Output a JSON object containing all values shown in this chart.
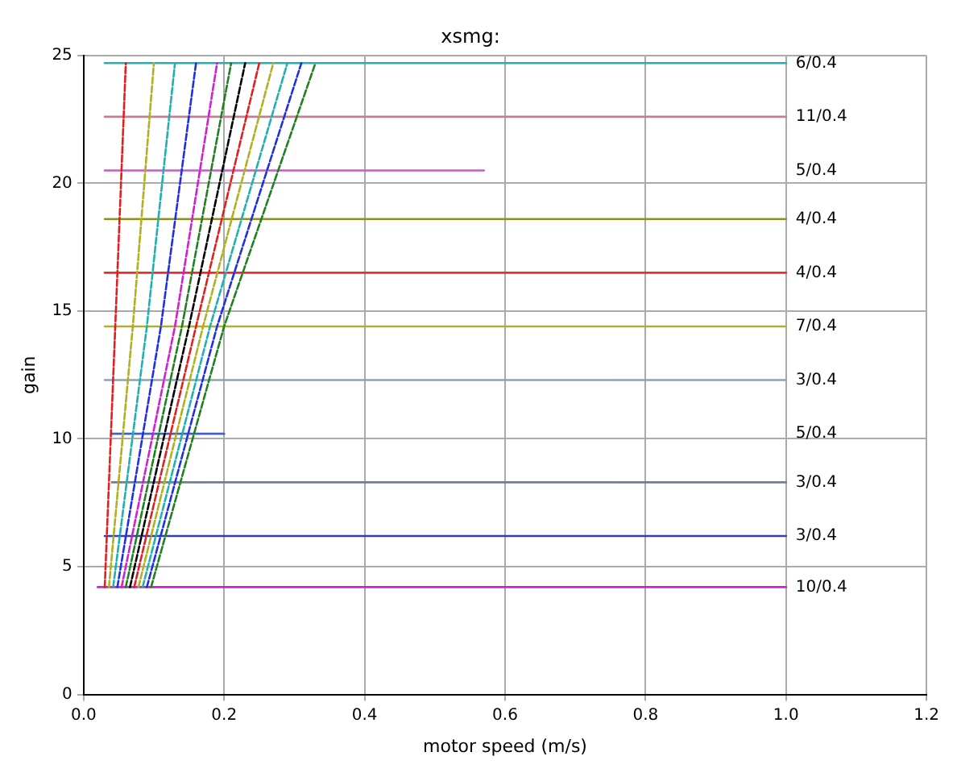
{
  "chart_data": {
    "type": "line",
    "title": "xsmg:",
    "xlabel": "motor speed (m/s)",
    "ylabel": "gain",
    "xlim": [
      0,
      1.2
    ],
    "xticks": [
      {
        "value": 0,
        "label": "0.0"
      },
      0.2,
      0.4,
      0.6,
      0.8,
      {
        "value": 1,
        "label": "1.0"
      },
      {
        "value": 1.2,
        "label": "1.2"
      }
    ],
    "ylim": [
      0,
      25
    ],
    "yticks": [
      0,
      5,
      10,
      15,
      20,
      25
    ],
    "grid": true,
    "legend": false,
    "marker": "none",
    "series": [
      {
        "name": "10/0.4",
        "color": "#d020d0",
        "x": [
          0.02,
          1.0
        ],
        "values": [
          4.2,
          4.2
        ]
      },
      {
        "name": "3/0.4",
        "color": "#3040b0",
        "x": [
          0.03,
          1.0
        ],
        "values": [
          6.2,
          6.2
        ]
      },
      {
        "name": "3/0.4",
        "color": "#708090",
        "x": [
          0.04,
          1.0
        ],
        "values": [
          8.3,
          8.3
        ]
      },
      {
        "name": "5/0.4",
        "color": "#4060d0",
        "x": [
          0.04,
          0.2
        ],
        "values": [
          10.2,
          10.2
        ]
      },
      {
        "name": "3/0.4",
        "color": "#90a0b0",
        "x": [
          0.03,
          1.0
        ],
        "values": [
          12.3,
          12.3
        ]
      },
      {
        "name": "7/0.4",
        "color": "#b0b030",
        "x": [
          0.03,
          1.0
        ],
        "values": [
          14.4,
          14.4
        ]
      },
      {
        "name": "4/0.4",
        "color": "#e03030",
        "x": [
          0.03,
          1.0
        ],
        "values": [
          16.5,
          16.5
        ]
      },
      {
        "name": "4/0.4",
        "color": "#909020",
        "x": [
          0.03,
          1.0
        ],
        "values": [
          18.6,
          18.6
        ]
      },
      {
        "name": "5/0.4",
        "color": "#c060c0",
        "x": [
          0.03,
          0.57
        ],
        "values": [
          20.5,
          20.5
        ]
      },
      {
        "name": "11/0.4",
        "color": "#c08090",
        "x": [
          0.03,
          1.0
        ],
        "values": [
          22.6,
          22.6
        ]
      },
      {
        "name": "6/0.4",
        "color": "#20b0b0",
        "x": [
          0.03,
          1.0
        ],
        "values": [
          24.7,
          24.7
        ]
      },
      {
        "color": "#e02020",
        "line_style": "dashed",
        "x": [
          0.03,
          0.045,
          0.06
        ],
        "values": [
          4.2,
          14.4,
          24.7
        ]
      },
      {
        "color": "#b0b020",
        "line_style": "dashed",
        "x": [
          0.036,
          0.07,
          0.1
        ],
        "values": [
          4.2,
          14.4,
          24.7
        ]
      },
      {
        "color": "#20b0b0",
        "line_style": "dashed",
        "x": [
          0.042,
          0.09,
          0.13
        ],
        "values": [
          4.2,
          14.4,
          24.7
        ]
      },
      {
        "color": "#2030e0",
        "line_style": "dashed",
        "x": [
          0.048,
          0.11,
          0.16
        ],
        "values": [
          4.2,
          14.4,
          24.7
        ]
      },
      {
        "color": "#d020d0",
        "line_style": "dashed",
        "x": [
          0.054,
          0.13,
          0.19
        ],
        "values": [
          4.2,
          14.4,
          24.7
        ]
      },
      {
        "color": "#208020",
        "line_style": "dashed",
        "x": [
          0.06,
          0.14,
          0.21
        ],
        "values": [
          4.2,
          14.4,
          24.7
        ]
      },
      {
        "color": "#000000",
        "line_style": "dashed",
        "x": [
          0.066,
          0.15,
          0.23
        ],
        "values": [
          4.2,
          14.4,
          24.7
        ]
      },
      {
        "color": "#e02020",
        "line_style": "dashed",
        "x": [
          0.072,
          0.16,
          0.25
        ],
        "values": [
          4.2,
          14.4,
          24.7
        ]
      },
      {
        "color": "#b0b020",
        "line_style": "dashed",
        "x": [
          0.078,
          0.17,
          0.27
        ],
        "values": [
          4.2,
          14.4,
          24.7
        ]
      },
      {
        "color": "#20b0b0",
        "line_style": "dashed",
        "x": [
          0.084,
          0.18,
          0.29
        ],
        "values": [
          4.2,
          14.4,
          24.7
        ]
      },
      {
        "color": "#2030e0",
        "line_style": "dashed",
        "x": [
          0.09,
          0.19,
          0.31
        ],
        "values": [
          4.2,
          14.4,
          24.7
        ]
      },
      {
        "color": "#208020",
        "line_style": "dashed",
        "x": [
          0.096,
          0.2,
          0.33
        ],
        "values": [
          4.2,
          14.4,
          24.7
        ]
      }
    ]
  }
}
